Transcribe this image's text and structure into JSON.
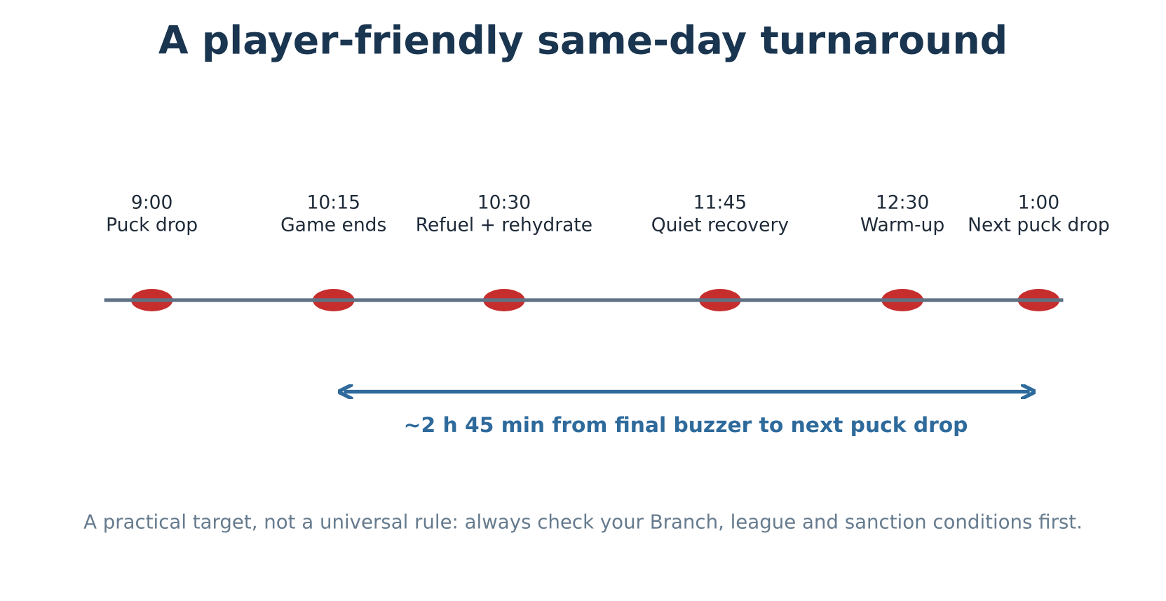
{
  "title": "A player-friendly same-day turnaround",
  "events": [
    {
      "time": "9:00",
      "label": "Puck drop"
    },
    {
      "time": "10:15",
      "label": "Game ends"
    },
    {
      "time": "10:30",
      "label": "Refuel + rehydrate"
    },
    {
      "time": "11:45",
      "label": "Quiet recovery"
    },
    {
      "time": "12:30",
      "label": "Warm-up"
    },
    {
      "time": "1:00",
      "label": "Next puck drop"
    }
  ],
  "span_label": "~2 h 45 min from final buzzer to next puck drop",
  "footnote": "A practical target, not a universal rule: always check your Branch, league and sanction conditions first."
}
